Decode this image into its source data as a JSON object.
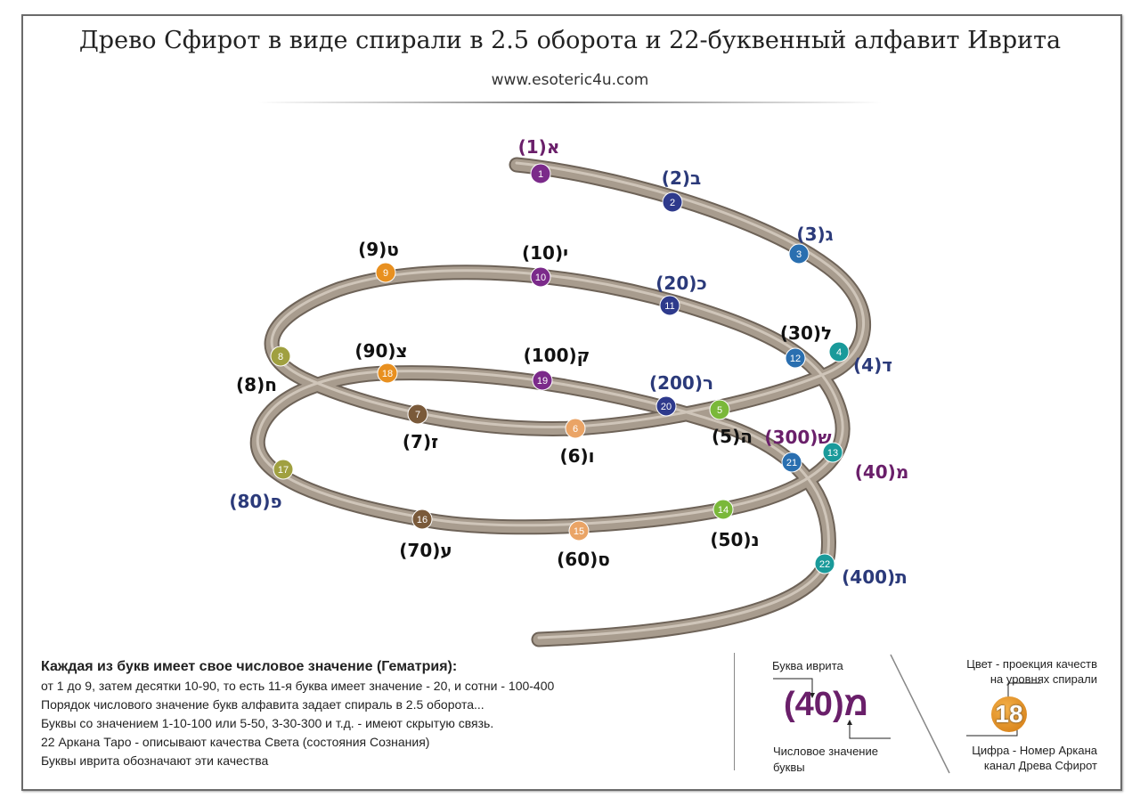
{
  "header": {
    "title": "Древо Сфирот в виде спирали в 2.5 оборота и 22-буквенный алфавит Иврита",
    "url": "www.esoteric4u.com"
  },
  "letters": [
    {
      "n": "1",
      "label": "א(1)",
      "color": "#7b2a8a",
      "text_color": "#6a1f6a"
    },
    {
      "n": "2",
      "label": "ב(2)",
      "color": "#2e3a8c",
      "text_color": "#2b3a7a"
    },
    {
      "n": "3",
      "label": "ג(3)",
      "color": "#2a6fb0",
      "text_color": "#2b3a7a"
    },
    {
      "n": "4",
      "label": "ד(4)",
      "color": "#1a9a9a",
      "text_color": "#2b3a7a"
    },
    {
      "n": "5",
      "label": "ה(5)",
      "color": "#7ab83a",
      "text_color": "#111111"
    },
    {
      "n": "6",
      "label": "ו(6)",
      "color": "#eaa466",
      "text_color": "#111111"
    },
    {
      "n": "7",
      "label": "ז(7)",
      "color": "#7a5a3a",
      "text_color": "#111111"
    },
    {
      "n": "8",
      "label": "ח(8)",
      "color": "#a0a040",
      "text_color": "#111111"
    },
    {
      "n": "9",
      "label": "ט(9)",
      "color": "#e89020",
      "text_color": "#111111"
    },
    {
      "n": "10",
      "label": "י(10)",
      "color": "#7b2a8a",
      "text_color": "#111111"
    },
    {
      "n": "11",
      "label": "כ(20)",
      "color": "#2e3a8c",
      "text_color": "#2b3a7a"
    },
    {
      "n": "12",
      "label": "ל(30)",
      "color": "#2a6fb0",
      "text_color": "#111111"
    },
    {
      "n": "13",
      "label": "מ(40)",
      "color": "#1a9a9a",
      "text_color": "#6a1f6a"
    },
    {
      "n": "14",
      "label": "נ(50)",
      "color": "#7ab83a",
      "text_color": "#111111"
    },
    {
      "n": "15",
      "label": "ס(60)",
      "color": "#eaa466",
      "text_color": "#111111"
    },
    {
      "n": "16",
      "label": "ע(70)",
      "color": "#7a5a3a",
      "text_color": "#111111"
    },
    {
      "n": "17",
      "label": "פ(80)",
      "color": "#a0a040",
      "text_color": "#2b3a7a"
    },
    {
      "n": "18",
      "label": "צ(90)",
      "color": "#e89020",
      "text_color": "#111111"
    },
    {
      "n": "19",
      "label": "ק(100)",
      "color": "#7b2a8a",
      "text_color": "#111111"
    },
    {
      "n": "20",
      "label": "ר(200)",
      "color": "#2e3a8c",
      "text_color": "#2b3a7a"
    },
    {
      "n": "21",
      "label": "ש(300)",
      "color": "#2a6fb0",
      "text_color": "#6a1f6a"
    },
    {
      "n": "22",
      "label": "ת(400)",
      "color": "#1a9a9a",
      "text_color": "#2b3a7a"
    }
  ],
  "info": {
    "heading": "Каждая из букв имеет свое числовое значение (Гематрия):",
    "lines": [
      "от 1 до 9, затем десятки 10-90, то есть 11-я буква имеет значение - 20, и сотни - 100-400",
      "Порядок числового значение букв алфавита задает спираль в 2.5 оборота...",
      "Буквы со значением 1-10-100 или 5-50, 3-30-300 и т.д. - имеют скрытую связь.",
      "22 Аркана Таро - описывают качества Света (состояния Сознания)",
      "Буквы иврита обозначают эти качества"
    ]
  },
  "legend": {
    "letter_caption": "Буква иврита",
    "example": "מ(40)",
    "value_caption_1": "Числовое значение",
    "value_caption_2": "буквы",
    "color_caption_1": "Цвет -  проекция качеств",
    "color_caption_2": "на уровнях спирали",
    "badge": "18",
    "badge_color": "#e89020",
    "number_caption_1": "Цифра - Номер Аркана",
    "number_caption_2": "канал Древа Сфирот"
  }
}
